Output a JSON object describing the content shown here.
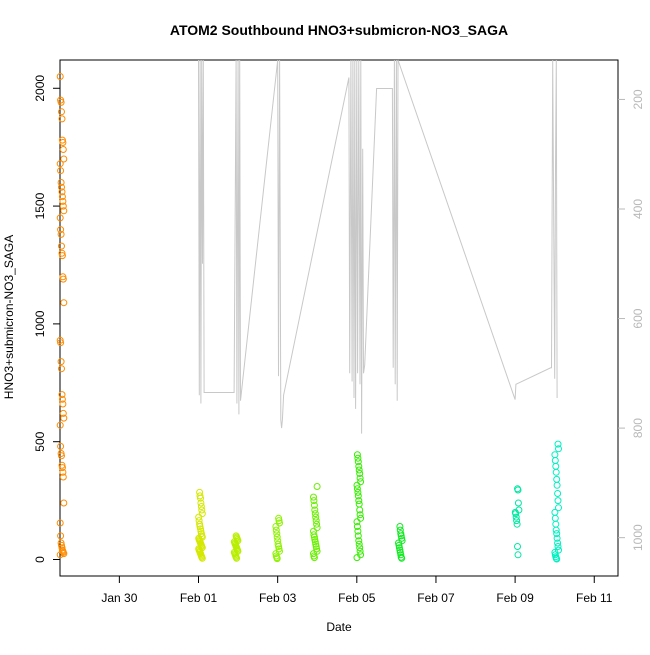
{
  "chart_data": {
    "type": "scatter",
    "title": "ATOM2 Southbound HNO3+submicron-NO3_SAGA",
    "xlabel": "Date",
    "ylabel": "HNO3+submicron-NO3_SAGA",
    "x_ticks": [
      {
        "label": "Jan 30",
        "day": 30
      },
      {
        "label": "Feb 01",
        "day": 32
      },
      {
        "label": "Feb 03",
        "day": 34
      },
      {
        "label": "Feb 05",
        "day": 36
      },
      {
        "label": "Feb 07",
        "day": 38
      },
      {
        "label": "Feb 09",
        "day": 40
      },
      {
        "label": "Feb 11",
        "day": 42
      }
    ],
    "xlim_day": [
      28.5,
      42.6
    ],
    "ylim": [
      -70,
      2120
    ],
    "y_ticks": [
      0,
      500,
      1000,
      1500,
      2000
    ],
    "y2_ticks": [
      200,
      400,
      600,
      800,
      1000
    ],
    "y2lim_inverted": [
      1070,
      128
    ],
    "grid": false,
    "legend": "none",
    "secondary_series": {
      "name": "",
      "color": "#c8c8c8",
      "y2_axis": true,
      "points": [
        [
          32.0,
          128
        ],
        [
          32.02,
          740
        ],
        [
          32.04,
          128
        ],
        [
          32.06,
          755
        ],
        [
          32.08,
          128
        ],
        [
          32.1,
          500
        ],
        [
          32.12,
          128
        ],
        [
          32.14,
          735
        ],
        [
          32.9,
          735
        ],
        [
          32.95,
          128
        ],
        [
          32.97,
          755
        ],
        [
          33.0,
          128
        ],
        [
          33.02,
          775
        ],
        [
          33.04,
          128
        ],
        [
          33.06,
          750
        ],
        [
          34.0,
          128
        ],
        [
          34.02,
          705
        ],
        [
          34.05,
          128
        ],
        [
          34.08,
          785
        ],
        [
          34.1,
          800
        ],
        [
          34.12,
          785
        ],
        [
          34.15,
          740
        ],
        [
          35.8,
          160
        ],
        [
          35.82,
          700
        ],
        [
          35.85,
          128
        ],
        [
          35.88,
          715
        ],
        [
          35.9,
          128
        ],
        [
          35.93,
          745
        ],
        [
          35.95,
          128
        ],
        [
          35.97,
          765
        ],
        [
          36.0,
          128
        ],
        [
          36.02,
          700
        ],
        [
          36.05,
          128
        ],
        [
          36.08,
          720
        ],
        [
          36.1,
          128
        ],
        [
          36.12,
          810
        ],
        [
          36.15,
          290
        ],
        [
          36.17,
          700
        ],
        [
          36.2,
          685
        ],
        [
          36.5,
          180
        ],
        [
          36.9,
          180
        ],
        [
          36.92,
          690
        ],
        [
          36.95,
          128
        ],
        [
          36.97,
          720
        ],
        [
          37.0,
          128
        ],
        [
          37.02,
          750
        ],
        [
          37.04,
          128
        ],
        [
          40.0,
          748
        ],
        [
          40.02,
          720
        ],
        [
          40.9,
          690
        ],
        [
          40.92,
          690
        ],
        [
          40.95,
          128
        ],
        [
          41.0,
          710
        ],
        [
          41.02,
          325
        ],
        [
          41.04,
          128
        ],
        [
          41.06,
          745
        ]
      ]
    },
    "series": [
      {
        "name": "",
        "color": "#ff8c00",
        "day": 28.55,
        "values": [
          2050,
          1950,
          1940,
          1900,
          1870,
          1780,
          1770,
          1740,
          1700,
          1680,
          1650,
          1600,
          1580,
          1560,
          1540,
          1520,
          1500,
          1480,
          1450,
          1400,
          1380,
          1330,
          1300,
          1290,
          1200,
          1190,
          1090,
          930,
          920,
          840,
          810,
          700,
          680,
          660,
          620,
          600,
          570,
          480,
          450,
          440,
          400,
          390,
          370,
          350,
          240,
          155,
          100,
          70,
          60,
          50,
          40,
          35,
          30,
          25,
          20
        ]
      },
      {
        "name": "",
        "color": "#d4e800",
        "day": 32.05,
        "values": [
          285,
          270,
          260,
          240,
          225,
          210,
          195,
          180,
          165,
          150,
          140,
          130,
          120,
          110,
          100,
          95,
          90,
          85,
          80,
          75,
          70,
          65,
          60,
          55,
          50,
          45,
          40,
          35,
          30,
          25,
          20,
          15,
          10,
          5
        ]
      },
      {
        "name": "",
        "color": "#b8ee00",
        "day": 32.95,
        "values": [
          100,
          95,
          90,
          85,
          80,
          75,
          70,
          65,
          60,
          55,
          50,
          45,
          40,
          35,
          30,
          25,
          20,
          15,
          10,
          5
        ]
      },
      {
        "name": "",
        "color": "#8ef200",
        "day": 34.0,
        "values": [
          175,
          165,
          155,
          140,
          125,
          110,
          95,
          80,
          65,
          55,
          45,
          35,
          25,
          15,
          8,
          4
        ]
      },
      {
        "name": "",
        "color": "#6af000",
        "day": 34.95,
        "values": [
          310,
          265,
          250,
          230,
          210,
          195,
          180,
          165,
          150,
          135,
          120,
          105,
          95,
          85,
          75,
          65,
          55,
          45,
          35,
          25,
          15,
          8
        ]
      },
      {
        "name": "",
        "color": "#36ee00",
        "day": 36.05,
        "values": [
          445,
          430,
          415,
          395,
          380,
          365,
          345,
          330,
          315,
          300,
          285,
          270,
          250,
          235,
          210,
          190,
          175,
          160,
          140,
          120,
          100,
          80,
          65,
          50,
          35,
          20,
          8
        ]
      },
      {
        "name": "",
        "color": "#10ea20",
        "day": 37.1,
        "values": [
          140,
          125,
          110,
          100,
          90,
          80,
          70,
          60,
          50,
          40,
          30,
          20,
          10,
          5
        ]
      },
      {
        "name": "",
        "color": "#00e8a0",
        "day": 40.05,
        "values": [
          300,
          295,
          240,
          210,
          200,
          195,
          180,
          165,
          150,
          55,
          20
        ]
      },
      {
        "name": "",
        "color": "#00f0c0",
        "day": 41.05,
        "values": [
          490,
          470,
          445,
          420,
          395,
          370,
          340,
          315,
          280,
          250,
          220,
          200,
          175,
          150,
          125,
          110,
          90,
          70,
          55,
          40,
          30,
          20,
          12,
          5,
          2
        ]
      }
    ]
  }
}
